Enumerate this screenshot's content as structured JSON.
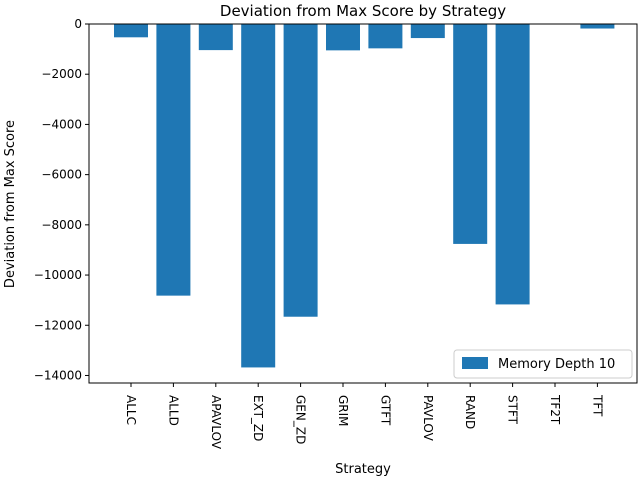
{
  "chart_data": {
    "type": "bar",
    "title": "Deviation from Max Score by Strategy",
    "xlabel": "Strategy",
    "ylabel": "Deviation from Max Score",
    "categories": [
      "ALLC",
      "ALLD",
      "APAVLOV",
      "EXT_ZD",
      "GEN_ZD",
      "GRIM",
      "GTFT",
      "PAVLOV",
      "RAND",
      "STFT",
      "TF2T",
      "TFT"
    ],
    "series": [
      {
        "name": "Memory Depth 10",
        "color": "#1f77b4",
        "values": [
          -530,
          -10820,
          -1040,
          -13680,
          -11660,
          -1050,
          -970,
          -560,
          -8760,
          -11170,
          0,
          -180
        ]
      }
    ],
    "ylim": [
      -14300,
      0
    ],
    "yticks": [
      0,
      -2000,
      -4000,
      -6000,
      -8000,
      -10000,
      -12000,
      -14000
    ],
    "ytick_labels": [
      "0",
      "−2000",
      "−4000",
      "−6000",
      "−8000",
      "−10000",
      "−12000",
      "−14000"
    ],
    "grid": false,
    "legend_position": "lower-right"
  }
}
